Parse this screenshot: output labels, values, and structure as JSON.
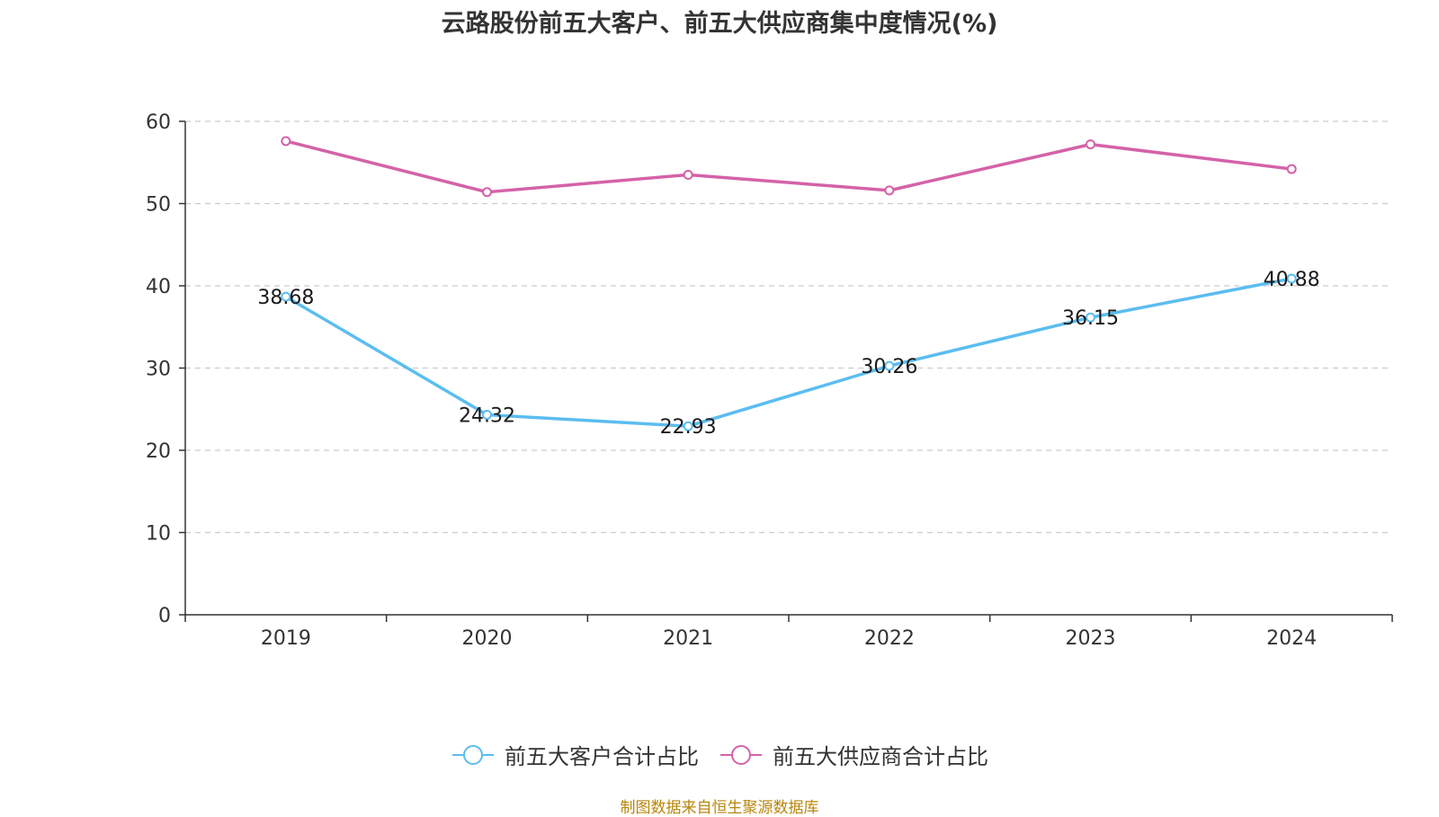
{
  "chart_data": {
    "type": "line",
    "title": "云路股份前五大客户、前五大供应商集中度情况(%)",
    "categories": [
      "2019",
      "2020",
      "2021",
      "2022",
      "2023",
      "2024"
    ],
    "ylim": [
      0,
      60
    ],
    "yticks": [
      0,
      10,
      20,
      30,
      40,
      50,
      60
    ],
    "grid": true,
    "legend_position": "bottom",
    "series": [
      {
        "name": "前五大客户合计占比",
        "color": "#5bbdf0",
        "values": [
          38.68,
          24.32,
          22.93,
          30.26,
          36.15,
          40.88
        ],
        "labels": [
          "38.68",
          "24.32",
          "22.93",
          "30.26",
          "36.15",
          "40.88"
        ],
        "show_labels": true
      },
      {
        "name": "前五大供应商合计占比",
        "color": "#d462a8",
        "values": [
          57.6,
          51.4,
          53.5,
          51.6,
          57.2,
          54.2
        ],
        "show_labels": false
      }
    ]
  },
  "footer": {
    "source": "制图数据来自恒生聚源数据库"
  }
}
